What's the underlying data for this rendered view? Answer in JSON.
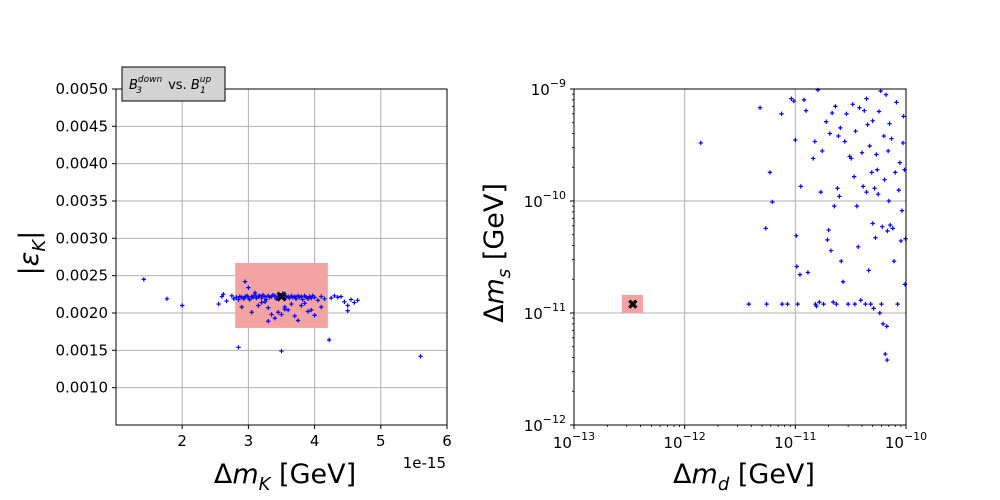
{
  "chart_data": [
    {
      "type": "scatter",
      "title": "",
      "legend": {
        "text": "B_3^down vs. B_1^up",
        "base1": "B",
        "sub1": "3",
        "sup1": "down",
        "mid": " vs. ",
        "base2": "B",
        "sub2": "1",
        "sup2": "up",
        "placement": "top-left above axes"
      },
      "xlabel": {
        "delta": "Δ",
        "m": "m",
        "sub": "K",
        "unit": " [GeV]"
      },
      "ylabel": {
        "text": "|ε_K|",
        "open": "|",
        "eps": "ε",
        "sub": "K",
        "close": "|"
      },
      "x_offset_label": "1e-15",
      "xscale": "linear",
      "yscale": "linear",
      "xlim": [
        1.0,
        6.0
      ],
      "ylim": [
        0.0005,
        0.005
      ],
      "xticks": [
        2,
        3,
        4,
        5,
        6
      ],
      "xtick_labels": [
        "2",
        "3",
        "4",
        "5",
        "6"
      ],
      "yticks": [
        0.001,
        0.0015,
        0.002,
        0.0025,
        0.003,
        0.0035,
        0.004,
        0.0045,
        0.005
      ],
      "ytick_labels": [
        "0.0010",
        "0.0015",
        "0.0020",
        "0.0025",
        "0.0030",
        "0.0035",
        "0.0040",
        "0.0045",
        "0.0050"
      ],
      "grid": true,
      "region": {
        "x": [
          2.8,
          4.2
        ],
        "y": [
          0.0018,
          0.00267
        ],
        "color": "#f4a3a3"
      },
      "reference_point": {
        "x": 3.5,
        "y": 0.00222,
        "marker": "x"
      },
      "series": [
        {
          "name": "scan",
          "color": "#0000ff",
          "marker": "+",
          "x": [
            1.42,
            1.77,
            2.0,
            2.55,
            2.6,
            2.62,
            2.67,
            2.75,
            2.78,
            2.82,
            2.85,
            2.87,
            2.9,
            2.93,
            2.95,
            2.98,
            3.0,
            3.02,
            3.05,
            3.07,
            3.1,
            3.12,
            3.15,
            3.17,
            3.2,
            3.22,
            3.25,
            3.27,
            3.3,
            3.32,
            3.35,
            3.37,
            3.4,
            3.42,
            3.45,
            3.47,
            3.5,
            3.52,
            3.55,
            3.57,
            3.6,
            3.62,
            3.65,
            3.67,
            3.7,
            3.72,
            3.75,
            3.77,
            3.8,
            3.82,
            3.85,
            3.87,
            3.9,
            3.92,
            3.95,
            3.97,
            4.0,
            4.05,
            4.1,
            4.15,
            4.25,
            4.3,
            4.35,
            4.4,
            4.45,
            4.5,
            4.55,
            4.65,
            4.6,
            2.95,
            3.0,
            3.1,
            3.2,
            3.3,
            3.45,
            3.55,
            3.6,
            3.7,
            3.8,
            3.85,
            3.4,
            3.5,
            3.55,
            3.3,
            3.65,
            3.9,
            4.0,
            3.25,
            3.15,
            4.1,
            4.5,
            2.85,
            3.5,
            4.22,
            5.6,
            2.9,
            3.05,
            3.75,
            3.95,
            3.35
          ],
          "y": [
            0.00245,
            0.00219,
            0.0021,
            0.00212,
            0.00222,
            0.00225,
            0.00216,
            0.00223,
            0.00219,
            0.00221,
            0.00218,
            0.00222,
            0.00221,
            0.00219,
            0.00222,
            0.00223,
            0.0022,
            0.00218,
            0.00222,
            0.00221,
            0.00224,
            0.0022,
            0.00222,
            0.00223,
            0.0022,
            0.00224,
            0.00222,
            0.00218,
            0.00223,
            0.00221,
            0.00222,
            0.00224,
            0.00223,
            0.00219,
            0.00222,
            0.00221,
            0.00224,
            0.00226,
            0.00223,
            0.00221,
            0.00222,
            0.0022,
            0.00223,
            0.00221,
            0.00222,
            0.00219,
            0.00223,
            0.00221,
            0.00222,
            0.00218,
            0.00223,
            0.00221,
            0.00219,
            0.00222,
            0.0022,
            0.00223,
            0.00221,
            0.00217,
            0.00222,
            0.00219,
            0.0022,
            0.00223,
            0.00221,
            0.00222,
            0.00215,
            0.0021,
            0.00218,
            0.00217,
            0.00214,
            0.00242,
            0.00234,
            0.00227,
            0.00214,
            0.00207,
            0.00201,
            0.00208,
            0.00204,
            0.00196,
            0.0021,
            0.00213,
            0.00193,
            0.00198,
            0.00205,
            0.00189,
            0.00212,
            0.00202,
            0.00197,
            0.00215,
            0.0021,
            0.00208,
            0.00203,
            0.00154,
            0.00149,
            0.00164,
            0.00142,
            0.00208,
            0.00201,
            0.0019,
            0.00204,
            0.00198
          ]
        }
      ]
    },
    {
      "type": "scatter",
      "title": "",
      "xlabel": {
        "delta": "Δ",
        "m": "m",
        "sub": "d",
        "unit": " [GeV]"
      },
      "ylabel": {
        "delta": "Δ",
        "m": "m",
        "sub": "s",
        "unit": " [GeV]"
      },
      "xscale": "log",
      "yscale": "log",
      "xlim": [
        1e-13,
        1e-10
      ],
      "ylim": [
        1e-12,
        1e-09
      ],
      "xtick_exps": [
        -13,
        -12,
        -11,
        -10
      ],
      "ytick_exps": [
        -12,
        -11,
        -10,
        -9
      ],
      "tick_base": "10",
      "xtick_sups": [
        "−13",
        "−12",
        "−11",
        "−10"
      ],
      "ytick_sups": [
        "−12",
        "−11",
        "−10",
        "−9"
      ],
      "grid": true,
      "region": {
        "x": [
          2.7e-13,
          4.2e-13
        ],
        "y": [
          1e-11,
          1.45e-11
        ],
        "color": "#f4a3a3"
      },
      "reference_point": {
        "x": 3.4e-13,
        "y": 1.2e-11,
        "marker": "X"
      },
      "series": [
        {
          "name": "scan",
          "color": "#0000ff",
          "marker": "+",
          "points": [
            [
              1.4e-12,
              3.3e-10
            ],
            [
              3.8e-12,
              1.2e-11
            ],
            [
              4.8e-12,
              6.8e-10
            ],
            [
              5.4e-12,
              5.7e-11
            ],
            [
              5.5e-12,
              1.2e-11
            ],
            [
              5.9e-12,
              1.8e-10
            ],
            [
              6.2e-12,
              9.8e-11
            ],
            [
              7.5e-12,
              6e-10
            ],
            [
              7.6e-12,
              1.2e-11
            ],
            [
              8.5e-12,
              1.2e-11
            ],
            [
              9.2e-12,
              8.2e-10
            ],
            [
              9.7e-12,
              7.8e-10
            ],
            [
              1e-11,
              3.5e-10
            ],
            [
              1.02e-11,
              4.9e-11
            ],
            [
              1.03e-11,
              2.6e-11
            ],
            [
              1.05e-11,
              1.2e-11
            ],
            [
              1.1e-11,
              2.2e-11
            ],
            [
              1.12e-11,
              1.35e-10
            ],
            [
              1.2e-11,
              8e-10
            ],
            [
              1.25e-11,
              6.4e-10
            ],
            [
              1.3e-11,
              2.3e-11
            ],
            [
              1.45e-11,
              2.4e-10
            ],
            [
              1.5e-11,
              3.4e-10
            ],
            [
              1.52e-11,
              1.2e-11
            ],
            [
              1.55e-11,
              1.15e-11
            ],
            [
              1.6e-11,
              9.8e-10
            ],
            [
              1.65e-11,
              1.25e-11
            ],
            [
              1.7e-11,
              1.2e-10
            ],
            [
              1.75e-11,
              2.8e-10
            ],
            [
              1.8e-11,
              1.2e-11
            ],
            [
              1.9e-11,
              5.1e-10
            ],
            [
              1.95e-11,
              4.5e-11
            ],
            [
              2e-11,
              5.5e-11
            ],
            [
              2.05e-11,
              4e-10
            ],
            [
              2.1e-11,
              3.6e-11
            ],
            [
              2.15e-11,
              6.1e-10
            ],
            [
              2.2e-11,
              1.25e-11
            ],
            [
              2.25e-11,
              9e-11
            ],
            [
              2.3e-11,
              7e-10
            ],
            [
              2.35e-11,
              1.2e-11
            ],
            [
              2.4e-11,
              1.3e-10
            ],
            [
              2.45e-11,
              3.8e-10
            ],
            [
              2.5e-11,
              1.1e-10
            ],
            [
              2.55e-11,
              4.5e-10
            ],
            [
              2.6e-11,
              2.9e-11
            ],
            [
              2.7e-11,
              1.9e-11
            ],
            [
              2.8e-11,
              3.4e-10
            ],
            [
              2.9e-11,
              6e-10
            ],
            [
              3e-11,
              1.2e-11
            ],
            [
              3.1e-11,
              2.5e-10
            ],
            [
              3.2e-11,
              2.4e-10
            ],
            [
              3.3e-11,
              7.3e-10
            ],
            [
              3.4e-11,
              1.65e-10
            ],
            [
              3.45e-11,
              1.2e-11
            ],
            [
              3.5e-11,
              4.2e-10
            ],
            [
              3.6e-11,
              9e-11
            ],
            [
              3.7e-11,
              3.9e-11
            ],
            [
              3.8e-11,
              6.8e-10
            ],
            [
              3.9e-11,
              1.3e-11
            ],
            [
              4e-11,
              2.7e-10
            ],
            [
              4.1e-11,
              1.35e-10
            ],
            [
              4.2e-11,
              6.4e-10
            ],
            [
              4.3e-11,
              1.2e-11
            ],
            [
              4.4e-11,
              1.2e-10
            ],
            [
              4.5e-11,
              4.8e-10
            ],
            [
              4.6e-11,
              2.4e-11
            ],
            [
              4.7e-11,
              3.1e-10
            ],
            [
              4.8e-11,
              1.2e-11
            ],
            [
              4.9e-11,
              1.8e-10
            ],
            [
              5e-11,
              5.2e-10
            ],
            [
              5.1e-11,
              1.1e-11
            ],
            [
              5.2e-11,
              1.3e-10
            ],
            [
              5.3e-11,
              4.7e-11
            ],
            [
              5.4e-11,
              2.6e-10
            ],
            [
              5.5e-11,
              1.9e-10
            ],
            [
              5.6e-11,
              1.15e-10
            ],
            [
              5.7e-11,
              6.3e-10
            ],
            [
              5.8e-11,
              1e-11
            ],
            [
              5.9e-11,
              9.6e-10
            ],
            [
              6e-11,
              1.2e-11
            ],
            [
              6.1e-11,
              5.9e-11
            ],
            [
              6.2e-11,
              8e-12
            ],
            [
              6.3e-11,
              3.8e-10
            ],
            [
              6.4e-11,
              1.55e-10
            ],
            [
              6.5e-11,
              4.3e-12
            ],
            [
              6.6e-11,
              8.9e-10
            ],
            [
              6.7e-11,
              7.6e-12
            ],
            [
              6.75e-11,
              3.8e-12
            ],
            [
              6.8e-11,
              5.4e-11
            ],
            [
              6.9e-11,
              2.8e-10
            ],
            [
              7e-11,
              1e-10
            ],
            [
              7.2e-11,
              6.1e-11
            ],
            [
              7.4e-11,
              3.6e-10
            ],
            [
              7.6e-11,
              5.7e-11
            ],
            [
              7.8e-11,
              2.9e-11
            ],
            [
              8e-11,
              1.8e-10
            ],
            [
              8.2e-11,
              7.6e-10
            ],
            [
              8.4e-11,
              1.2e-11
            ],
            [
              8.6e-11,
              1.25e-10
            ],
            [
              8.8e-11,
              2.2e-10
            ],
            [
              9e-11,
              4.4e-11
            ],
            [
              9.2e-11,
              8.2e-11
            ],
            [
              9.4e-11,
              3.3e-10
            ],
            [
              9.5e-11,
              5.7e-10
            ],
            [
              9.7e-11,
              1.9e-10
            ],
            [
              9.8e-11,
              1.8e-11
            ],
            [
              9.9e-11,
              4.6e-11
            ],
            [
              7.1e-11,
              4.9e-10
            ],
            [
              5e-11,
              6.3e-11
            ],
            [
              4.4e-11,
              8.2e-10
            ]
          ]
        }
      ]
    }
  ]
}
